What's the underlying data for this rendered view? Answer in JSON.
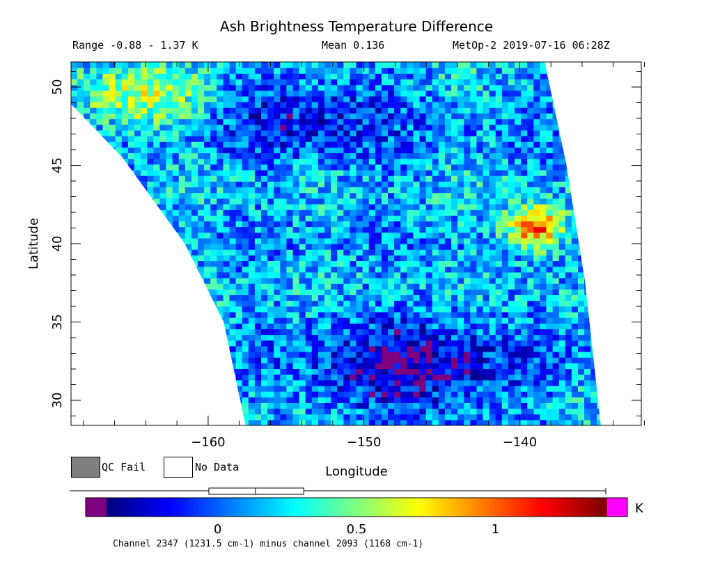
{
  "header": {
    "title": "Ash Brightness Temperature Difference",
    "range_text": "Range -0.88 - 1.37 K",
    "mean_text": "Mean 0.136",
    "satellite_text": "MetOp-2 2019-07-16 06:28Z"
  },
  "chart_data": {
    "type": "heatmap",
    "title": "Ash Brightness Temperature Difference",
    "xlabel": "Longitude",
    "ylabel": "Latitude",
    "xlim": [
      -168.8,
      -132.2
    ],
    "ylim": [
      28.4,
      51.6
    ],
    "x_ticks": [
      -160,
      -150,
      -140
    ],
    "x_tick_labels": [
      "−160",
      "−150",
      "−140"
    ],
    "y_ticks": [
      30,
      35,
      40,
      45,
      50
    ],
    "y_tick_labels": [
      "30",
      "35",
      "40",
      "45",
      "50"
    ],
    "value_range": [
      -0.88,
      1.37
    ],
    "mean": 0.136,
    "units": "K",
    "swath": {
      "left_edge": [
        [
          -168.8,
          48.9
        ],
        [
          -165.5,
          45.5
        ],
        [
          -161.5,
          40.0
        ],
        [
          -159.0,
          35.0
        ],
        [
          -157.6,
          28.4
        ]
      ],
      "right_edge": [
        [
          -138.4,
          51.6
        ],
        [
          -137.0,
          45.0
        ],
        [
          -135.8,
          37.5
        ],
        [
          -134.8,
          28.4
        ]
      ]
    },
    "features": [
      {
        "description": "low values (dark blue)",
        "lon_range": [
          -154,
          -140
        ],
        "lat_range": [
          28.4,
          35.5
        ],
        "value": -0.3
      },
      {
        "description": "low values (blue)",
        "lon_range": [
          -160,
          -147
        ],
        "lat_range": [
          45,
          51.6
        ],
        "value": -0.15
      },
      {
        "description": "high values (orange-red)",
        "lon_range": [
          -141,
          -137
        ],
        "lat_range": [
          39.5,
          42.5
        ],
        "value": 1.1
      },
      {
        "description": "elevated values (yellow-green)",
        "lon_range": [
          -168.8,
          -160
        ],
        "lat_range": [
          47,
          51.6
        ],
        "value": 0.6
      }
    ],
    "grid": false
  },
  "legend": {
    "qc_fail_label": "QC Fail",
    "no_data_label": "No Data",
    "qc_fail_color": "#7f7f7f",
    "no_data_color": "#ffffff"
  },
  "colorbar": {
    "min": -0.4,
    "max": 1.4,
    "under_color": "#7f007f",
    "over_color": "#ff00ff",
    "tick_values": [
      0,
      0.5,
      1
    ],
    "tick_labels": [
      "0",
      "0.5",
      "1"
    ],
    "unit": "K",
    "histogram_range": [
      -0.88,
      1.37
    ]
  },
  "footnote": "Channel 2347 (1231.5 cm-1) minus channel 2093 (1168 cm-1)"
}
